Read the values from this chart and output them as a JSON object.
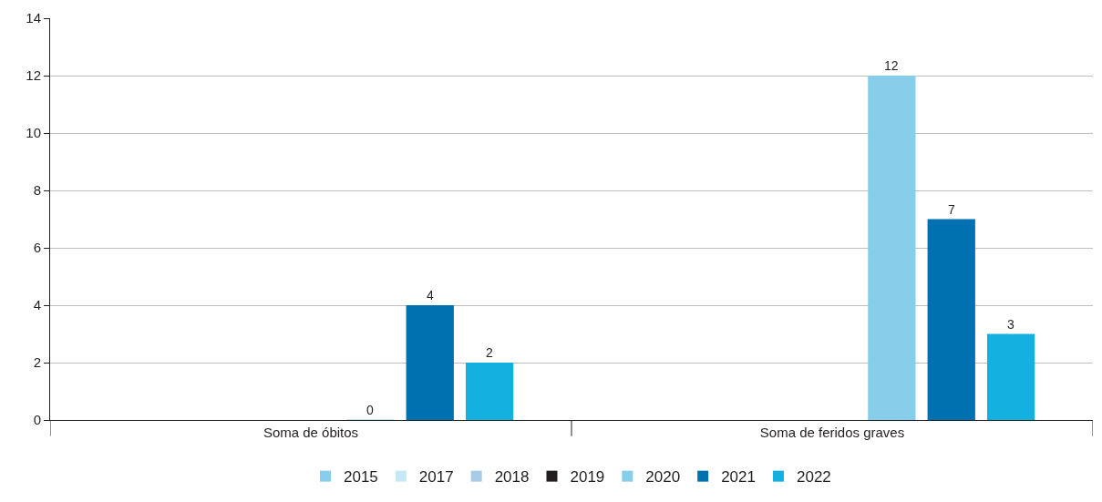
{
  "chart_data": {
    "type": "bar",
    "categories": [
      "Soma de óbitos",
      "Soma de feridos graves"
    ],
    "series": [
      {
        "name": "2015",
        "color": "#87cdee",
        "values": [
          null,
          null
        ]
      },
      {
        "name": "2017",
        "color": "#c6e7f6",
        "values": [
          null,
          null
        ]
      },
      {
        "name": "2018",
        "color": "#a8cbea",
        "values": [
          null,
          null
        ]
      },
      {
        "name": "2019",
        "color": "#231f20",
        "values": [
          null,
          null
        ]
      },
      {
        "name": "2020",
        "color": "#87ceeb",
        "values": [
          0,
          12
        ]
      },
      {
        "name": "2021",
        "color": "#0071b0",
        "values": [
          4,
          7
        ]
      },
      {
        "name": "2022",
        "color": "#14b1e0",
        "values": [
          2,
          3
        ]
      }
    ],
    "ylim": [
      0,
      14
    ],
    "yticks": [
      0,
      2,
      4,
      6,
      8,
      10,
      12,
      14
    ],
    "grid": "y",
    "legend": "bottom",
    "data_labels": true
  }
}
